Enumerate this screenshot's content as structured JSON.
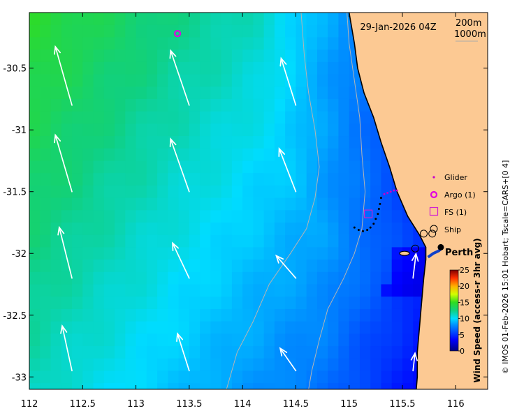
{
  "chart_data": {
    "type": "heatmap",
    "title": "29-Jan-2026 04Z",
    "x_ticks": [
      112,
      112.5,
      113,
      113.5,
      114,
      114.5,
      115,
      115.5,
      116
    ],
    "x_tick_labels": [
      "112",
      "112.5",
      "113",
      "113.5",
      "114",
      "114.5",
      "115",
      "115.5",
      "116"
    ],
    "y_ticks": [
      -30.5,
      -31,
      -31.5,
      -32,
      -32.5,
      -33
    ],
    "y_tick_labels": [
      "-30.5",
      "-31",
      "-31.5",
      "-32",
      "-32.5",
      "-33"
    ],
    "xlim": [
      112,
      116.3
    ],
    "ylim": [
      -33.1,
      -30.05
    ],
    "contour_labels": [
      "200m",
      "1000m"
    ],
    "colorbar": {
      "label": "Wind Speed (access-r 3hr avg)",
      "min": 0,
      "max": 25,
      "ticks": [
        0,
        5,
        10,
        15,
        20,
        25
      ],
      "tick_labels": [
        "0",
        "5",
        "10",
        "15",
        "20",
        "25"
      ]
    },
    "legend": [
      {
        "label": "Glider",
        "marker": "small-dot",
        "color": "#c800c8"
      },
      {
        "label": "Argo (1)",
        "marker": "circle",
        "color": "#e000e0"
      },
      {
        "label": "FS (1)",
        "marker": "square",
        "color": "#d020d0"
      },
      {
        "label": "Ship",
        "marker": "black-circle",
        "color": "#000000"
      }
    ],
    "city_label": "Perth",
    "city_position": [
      115.86,
      -31.95
    ],
    "credit": "© IMOS 01-Feb-2026 15:01 Hobart; Tscale=CARS+[0 4]",
    "wind_vectors": [
      {
        "lon": 112.4,
        "lat": -30.8,
        "u": -1.7,
        "v": 6.0
      },
      {
        "lon": 113.5,
        "lat": -30.8,
        "u": -1.9,
        "v": 5.6
      },
      {
        "lon": 114.5,
        "lat": -30.8,
        "u": -1.5,
        "v": 4.8
      },
      {
        "lon": 112.4,
        "lat": -31.5,
        "u": -1.7,
        "v": 5.8
      },
      {
        "lon": 113.5,
        "lat": -31.5,
        "u": -1.9,
        "v": 5.4
      },
      {
        "lon": 114.5,
        "lat": -31.5,
        "u": -1.7,
        "v": 4.4
      },
      {
        "lon": 112.4,
        "lat": -32.2,
        "u": -1.3,
        "v": 5.2
      },
      {
        "lon": 113.5,
        "lat": -32.2,
        "u": -1.7,
        "v": 3.6
      },
      {
        "lon": 114.5,
        "lat": -32.2,
        "u": -2.0,
        "v": 2.3
      },
      {
        "lon": 115.6,
        "lat": -32.2,
        "u": 0.3,
        "v": 2.5
      },
      {
        "lon": 112.4,
        "lat": -32.95,
        "u": -1.0,
        "v": 4.6
      },
      {
        "lon": 113.5,
        "lat": -32.95,
        "u": -1.2,
        "v": 3.8
      },
      {
        "lon": 114.5,
        "lat": -32.95,
        "u": -1.6,
        "v": 2.3
      },
      {
        "lon": 115.6,
        "lat": -32.95,
        "u": 0.2,
        "v": 1.8
      }
    ],
    "glider_track": [
      [
        115.45,
        -31.49
      ],
      [
        115.42,
        -31.49
      ],
      [
        115.39,
        -31.5
      ],
      [
        115.36,
        -31.51
      ],
      [
        115.33,
        -31.52
      ],
      [
        115.3,
        -31.55
      ],
      [
        115.29,
        -31.6
      ],
      [
        115.28,
        -31.64
      ],
      [
        115.27,
        -31.68
      ],
      [
        115.25,
        -31.72
      ],
      [
        115.23,
        -31.76
      ],
      [
        115.2,
        -31.79
      ],
      [
        115.17,
        -31.81
      ],
      [
        115.13,
        -31.82
      ],
      [
        115.09,
        -31.81
      ],
      [
        115.05,
        -31.79
      ]
    ],
    "argo_floats": [
      [
        113.39,
        -30.22
      ]
    ],
    "fs_stations": [
      [
        115.18,
        -31.68
      ]
    ],
    "ship_positions": [
      [
        115.7,
        -31.84
      ],
      [
        115.78,
        -31.84
      ],
      [
        115.62,
        -31.96
      ]
    ]
  }
}
